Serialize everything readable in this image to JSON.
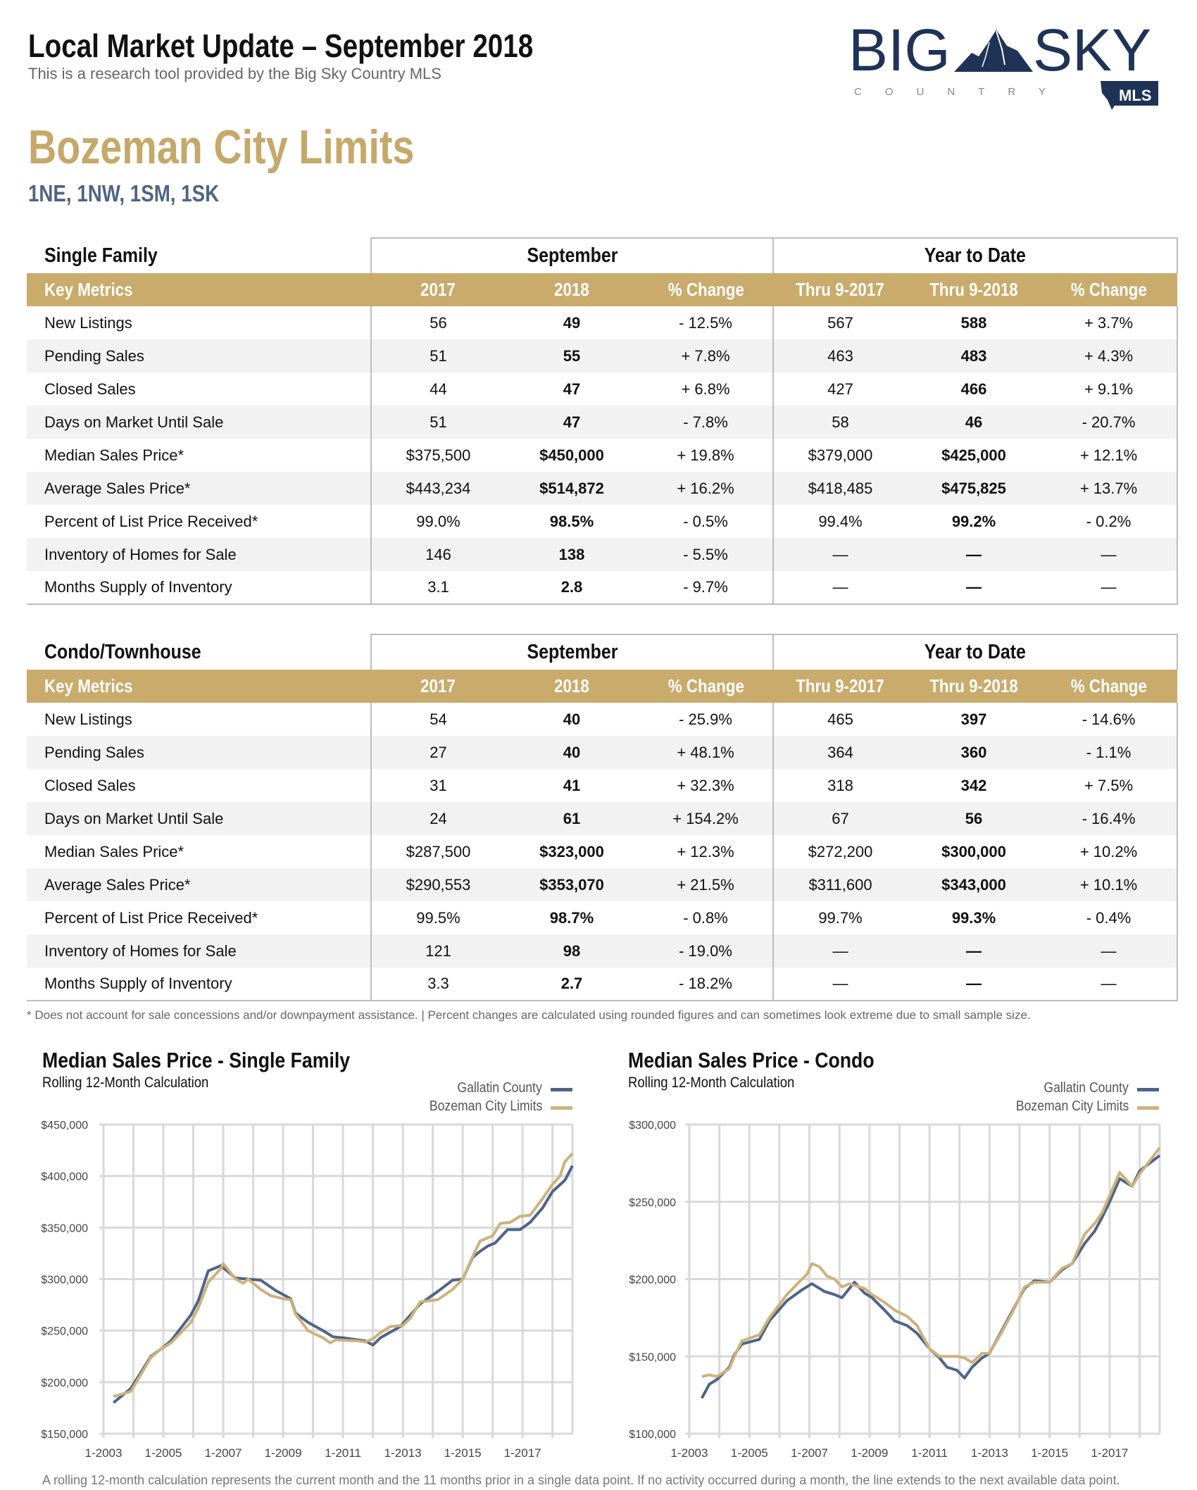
{
  "header": {
    "title": "Local Market Update – September 2018",
    "subtitle": "This is a research tool provided by the Big Sky Country MLS"
  },
  "logo": {
    "word1": "BIG",
    "word2": "SKY",
    "country": "COUNTRY",
    "badge": "MLS",
    "navy": "#1f3356"
  },
  "area": {
    "title": "Bozeman City Limits",
    "codes": "1NE, 1NW, 1SM, 1SK"
  },
  "colors": {
    "gold": "#c9ab6c",
    "navy_line": "#4f6489",
    "gold_line": "#cdb27c",
    "area_title": "#c5a96b",
    "codes": "#4f6483"
  },
  "tables": [
    {
      "title": "Single Family",
      "group1": "September",
      "group2": "Year to Date",
      "columns": [
        "Key Metrics",
        "2017",
        "2018",
        "% Change",
        "Thru 9-2017",
        "Thru 9-2018",
        "% Change"
      ],
      "rows": [
        [
          "New Listings",
          "56",
          "49",
          "- 12.5%",
          "567",
          "588",
          "+ 3.7%"
        ],
        [
          "Pending Sales",
          "51",
          "55",
          "+ 7.8%",
          "463",
          "483",
          "+ 4.3%"
        ],
        [
          "Closed Sales",
          "44",
          "47",
          "+ 6.8%",
          "427",
          "466",
          "+ 9.1%"
        ],
        [
          "Days on Market Until Sale",
          "51",
          "47",
          "- 7.8%",
          "58",
          "46",
          "- 20.7%"
        ],
        [
          "Median Sales Price*",
          "$375,500",
          "$450,000",
          "+ 19.8%",
          "$379,000",
          "$425,000",
          "+ 12.1%"
        ],
        [
          "Average Sales Price*",
          "$443,234",
          "$514,872",
          "+ 16.2%",
          "$418,485",
          "$475,825",
          "+ 13.7%"
        ],
        [
          "Percent of List Price Received*",
          "99.0%",
          "98.5%",
          "- 0.5%",
          "99.4%",
          "99.2%",
          "- 0.2%"
        ],
        [
          "Inventory of Homes for Sale",
          "146",
          "138",
          "- 5.5%",
          "—",
          "—",
          "—"
        ],
        [
          "Months Supply of Inventory",
          "3.1",
          "2.8",
          "- 9.7%",
          "—",
          "—",
          "—"
        ]
      ]
    },
    {
      "title": "Condo/Townhouse",
      "group1": "September",
      "group2": "Year to Date",
      "columns": [
        "Key Metrics",
        "2017",
        "2018",
        "% Change",
        "Thru 9-2017",
        "Thru 9-2018",
        "% Change"
      ],
      "rows": [
        [
          "New Listings",
          "54",
          "40",
          "- 25.9%",
          "465",
          "397",
          "- 14.6%"
        ],
        [
          "Pending Sales",
          "27",
          "40",
          "+ 48.1%",
          "364",
          "360",
          "- 1.1%"
        ],
        [
          "Closed Sales",
          "31",
          "41",
          "+ 32.3%",
          "318",
          "342",
          "+ 7.5%"
        ],
        [
          "Days on Market Until Sale",
          "24",
          "61",
          "+ 154.2%",
          "67",
          "56",
          "- 16.4%"
        ],
        [
          "Median Sales Price*",
          "$287,500",
          "$323,000",
          "+ 12.3%",
          "$272,200",
          "$300,000",
          "+ 10.2%"
        ],
        [
          "Average Sales Price*",
          "$290,553",
          "$353,070",
          "+ 21.5%",
          "$311,600",
          "$343,000",
          "+ 10.1%"
        ],
        [
          "Percent of List Price Received*",
          "99.5%",
          "98.7%",
          "- 0.8%",
          "99.7%",
          "99.3%",
          "- 0.4%"
        ],
        [
          "Inventory of Homes for Sale",
          "121",
          "98",
          "- 19.0%",
          "—",
          "—",
          "—"
        ],
        [
          "Months Supply of Inventory",
          "3.3",
          "2.7",
          "- 18.2%",
          "—",
          "—",
          "—"
        ]
      ]
    }
  ],
  "footnote": "* Does not account for sale concessions and/or downpayment assistance. | Percent changes are calculated using rounded figures and can sometimes look extreme due to small sample size.",
  "bottom_note": "A rolling 12-month calculation represents the current month and the 11 months prior in a single data point. If no activity occurred during a month, the line extends to the next available data point.",
  "chart_data": [
    {
      "type": "line",
      "title": "Median Sales Price - Single Family",
      "subtitle": "Rolling 12-Month Calculation",
      "legend": "top-right",
      "grid": true,
      "xlim": [
        "2003-01",
        "2018-09"
      ],
      "ylim": [
        150000,
        450000
      ],
      "xticks": [
        "1-2003",
        "1-2005",
        "1-2007",
        "1-2009",
        "1-2011",
        "1-2013",
        "1-2015",
        "1-2017"
      ],
      "yticks": [
        "$150,000",
        "$200,000",
        "$250,000",
        "$300,000",
        "$350,000",
        "$400,000",
        "$450,000"
      ],
      "series": [
        {
          "name": "Gallatin County",
          "color": "#4f6489",
          "points": [
            [
              "2003-05",
              180000
            ],
            [
              "2003-12",
              194000
            ],
            [
              "2004-08",
              225000
            ],
            [
              "2004-12",
              232000
            ],
            [
              "2005-04",
              240000
            ],
            [
              "2005-12",
              265000
            ],
            [
              "2006-03",
              279000
            ],
            [
              "2006-07",
              308000
            ],
            [
              "2006-12",
              313000
            ],
            [
              "2007-06",
              301000
            ],
            [
              "2007-11",
              300000
            ],
            [
              "2008-04",
              299000
            ],
            [
              "2008-10",
              289000
            ],
            [
              "2009-04",
              281000
            ],
            [
              "2009-06",
              267000
            ],
            [
              "2009-11",
              258000
            ],
            [
              "2010-05",
              250000
            ],
            [
              "2010-09",
              244000
            ],
            [
              "2011-01",
              243000
            ],
            [
              "2011-10",
              240000
            ],
            [
              "2012-01",
              236000
            ],
            [
              "2012-04",
              243000
            ],
            [
              "2012-12",
              254000
            ],
            [
              "2013-08",
              276000
            ],
            [
              "2014-03",
              288000
            ],
            [
              "2014-09",
              299000
            ],
            [
              "2015-01",
              300000
            ],
            [
              "2015-05",
              321000
            ],
            [
              "2015-08",
              327000
            ],
            [
              "2015-11",
              332000
            ],
            [
              "2016-02",
              335000
            ],
            [
              "2016-07",
              348000
            ],
            [
              "2016-12",
              348000
            ],
            [
              "2017-04",
              355000
            ],
            [
              "2017-09",
              369000
            ],
            [
              "2018-01",
              385000
            ],
            [
              "2018-06",
              396000
            ],
            [
              "2018-09",
              410000
            ]
          ]
        },
        {
          "name": "Bozeman City Limits",
          "color": "#cdb27c",
          "points": [
            [
              "2003-05",
              186000
            ],
            [
              "2003-12",
              191000
            ],
            [
              "2004-08",
              224000
            ],
            [
              "2004-12",
              232000
            ],
            [
              "2005-04",
              238000
            ],
            [
              "2005-12",
              258000
            ],
            [
              "2006-03",
              272000
            ],
            [
              "2006-07",
              297000
            ],
            [
              "2006-12",
              310000
            ],
            [
              "2007-01",
              315000
            ],
            [
              "2007-06",
              300000
            ],
            [
              "2007-09",
              296000
            ],
            [
              "2007-11",
              300000
            ],
            [
              "2008-04",
              290000
            ],
            [
              "2008-08",
              284000
            ],
            [
              "2009-01",
              281000
            ],
            [
              "2009-04",
              280000
            ],
            [
              "2009-06",
              266000
            ],
            [
              "2009-11",
              250000
            ],
            [
              "2010-05",
              243000
            ],
            [
              "2010-08",
              238000
            ],
            [
              "2010-10",
              241000
            ],
            [
              "2011-07",
              240000
            ],
            [
              "2011-10",
              239000
            ],
            [
              "2012-01",
              242000
            ],
            [
              "2012-04",
              248000
            ],
            [
              "2012-08",
              254000
            ],
            [
              "2013-01",
              255000
            ],
            [
              "2013-04",
              262000
            ],
            [
              "2013-08",
              278000
            ],
            [
              "2014-03",
              280000
            ],
            [
              "2014-09",
              290000
            ],
            [
              "2015-01",
              300000
            ],
            [
              "2015-05",
              322000
            ],
            [
              "2015-08",
              337000
            ],
            [
              "2016-01",
              342000
            ],
            [
              "2016-04",
              354000
            ],
            [
              "2016-08",
              355000
            ],
            [
              "2016-12",
              361000
            ],
            [
              "2017-04",
              362000
            ],
            [
              "2017-09",
              378000
            ],
            [
              "2018-01",
              392000
            ],
            [
              "2018-04",
              400000
            ],
            [
              "2018-06",
              414000
            ],
            [
              "2018-09",
              422000
            ]
          ]
        }
      ]
    },
    {
      "type": "line",
      "title": "Median Sales Price - Condo",
      "subtitle": "Rolling 12-Month Calculation",
      "legend": "top-right",
      "grid": true,
      "xlim": [
        "2003-01",
        "2018-09"
      ],
      "ylim": [
        100000,
        300000
      ],
      "xticks": [
        "1-2003",
        "1-2005",
        "1-2007",
        "1-2009",
        "1-2011",
        "1-2013",
        "1-2015",
        "1-2017"
      ],
      "yticks": [
        "$100,000",
        "$150,000",
        "$200,000",
        "$250,000",
        "$300,000"
      ],
      "series": [
        {
          "name": "Gallatin County",
          "color": "#4f6489",
          "points": [
            [
              "2003-06",
              123000
            ],
            [
              "2003-09",
              132000
            ],
            [
              "2003-12",
              135000
            ],
            [
              "2004-05",
              143000
            ],
            [
              "2004-07",
              151000
            ],
            [
              "2004-10",
              158000
            ],
            [
              "2005-05",
              161000
            ],
            [
              "2005-09",
              173000
            ],
            [
              "2006-04",
              186000
            ],
            [
              "2006-10",
              193000
            ],
            [
              "2007-02",
              197000
            ],
            [
              "2007-07",
              192000
            ],
            [
              "2007-11",
              190000
            ],
            [
              "2008-02",
              188000
            ],
            [
              "2008-07",
              198000
            ],
            [
              "2008-11",
              191000
            ],
            [
              "2009-02",
              188000
            ],
            [
              "2009-07",
              180000
            ],
            [
              "2009-11",
              173000
            ],
            [
              "2010-04",
              170000
            ],
            [
              "2010-08",
              165000
            ],
            [
              "2011-01",
              155000
            ],
            [
              "2011-05",
              149000
            ],
            [
              "2011-08",
              143000
            ],
            [
              "2011-12",
              141000
            ],
            [
              "2012-03",
              136000
            ],
            [
              "2012-06",
              143000
            ],
            [
              "2012-10",
              149000
            ],
            [
              "2013-01",
              152000
            ],
            [
              "2013-06",
              167000
            ],
            [
              "2013-10",
              179000
            ],
            [
              "2014-03",
              194000
            ],
            [
              "2014-07",
              199000
            ],
            [
              "2015-01",
              198000
            ],
            [
              "2015-06",
              206000
            ],
            [
              "2015-10",
              210000
            ],
            [
              "2016-03",
              223000
            ],
            [
              "2016-07",
              231000
            ],
            [
              "2016-10",
              240000
            ],
            [
              "2017-01",
              250000
            ],
            [
              "2017-05",
              265000
            ],
            [
              "2017-10",
              260000
            ],
            [
              "2018-01",
              270000
            ],
            [
              "2018-09",
              280000
            ]
          ]
        },
        {
          "name": "Bozeman City Limits",
          "color": "#cdb27c",
          "points": [
            [
              "2003-06",
              137000
            ],
            [
              "2003-09",
              138000
            ],
            [
              "2003-12",
              137000
            ],
            [
              "2004-05",
              142000
            ],
            [
              "2004-07",
              150000
            ],
            [
              "2004-10",
              160000
            ],
            [
              "2005-05",
              164000
            ],
            [
              "2005-09",
              175000
            ],
            [
              "2006-04",
              190000
            ],
            [
              "2006-10",
              200000
            ],
            [
              "2006-12",
              203000
            ],
            [
              "2007-02",
              210000
            ],
            [
              "2007-05",
              208000
            ],
            [
              "2007-08",
              202000
            ],
            [
              "2007-11",
              200000
            ],
            [
              "2008-02",
              195000
            ],
            [
              "2008-05",
              197000
            ],
            [
              "2008-07",
              196000
            ],
            [
              "2008-11",
              194000
            ],
            [
              "2009-02",
              190000
            ],
            [
              "2009-07",
              185000
            ],
            [
              "2009-11",
              180000
            ],
            [
              "2010-04",
              176000
            ],
            [
              "2010-08",
              170000
            ],
            [
              "2011-01",
              155000
            ],
            [
              "2011-05",
              150000
            ],
            [
              "2011-08",
              150000
            ],
            [
              "2011-12",
              150000
            ],
            [
              "2012-03",
              149000
            ],
            [
              "2012-06",
              146000
            ],
            [
              "2012-10",
              152000
            ],
            [
              "2013-01",
              152000
            ],
            [
              "2013-06",
              166000
            ],
            [
              "2013-10",
              178000
            ],
            [
              "2014-03",
              195000
            ],
            [
              "2014-07",
              198000
            ],
            [
              "2015-01",
              198000
            ],
            [
              "2015-06",
              207000
            ],
            [
              "2015-10",
              210000
            ],
            [
              "2016-03",
              229000
            ],
            [
              "2016-07",
              236000
            ],
            [
              "2016-10",
              243000
            ],
            [
              "2017-01",
              254000
            ],
            [
              "2017-05",
              269000
            ],
            [
              "2017-10",
              260000
            ],
            [
              "2018-01",
              268000
            ],
            [
              "2018-09",
              285000
            ]
          ]
        }
      ]
    }
  ]
}
